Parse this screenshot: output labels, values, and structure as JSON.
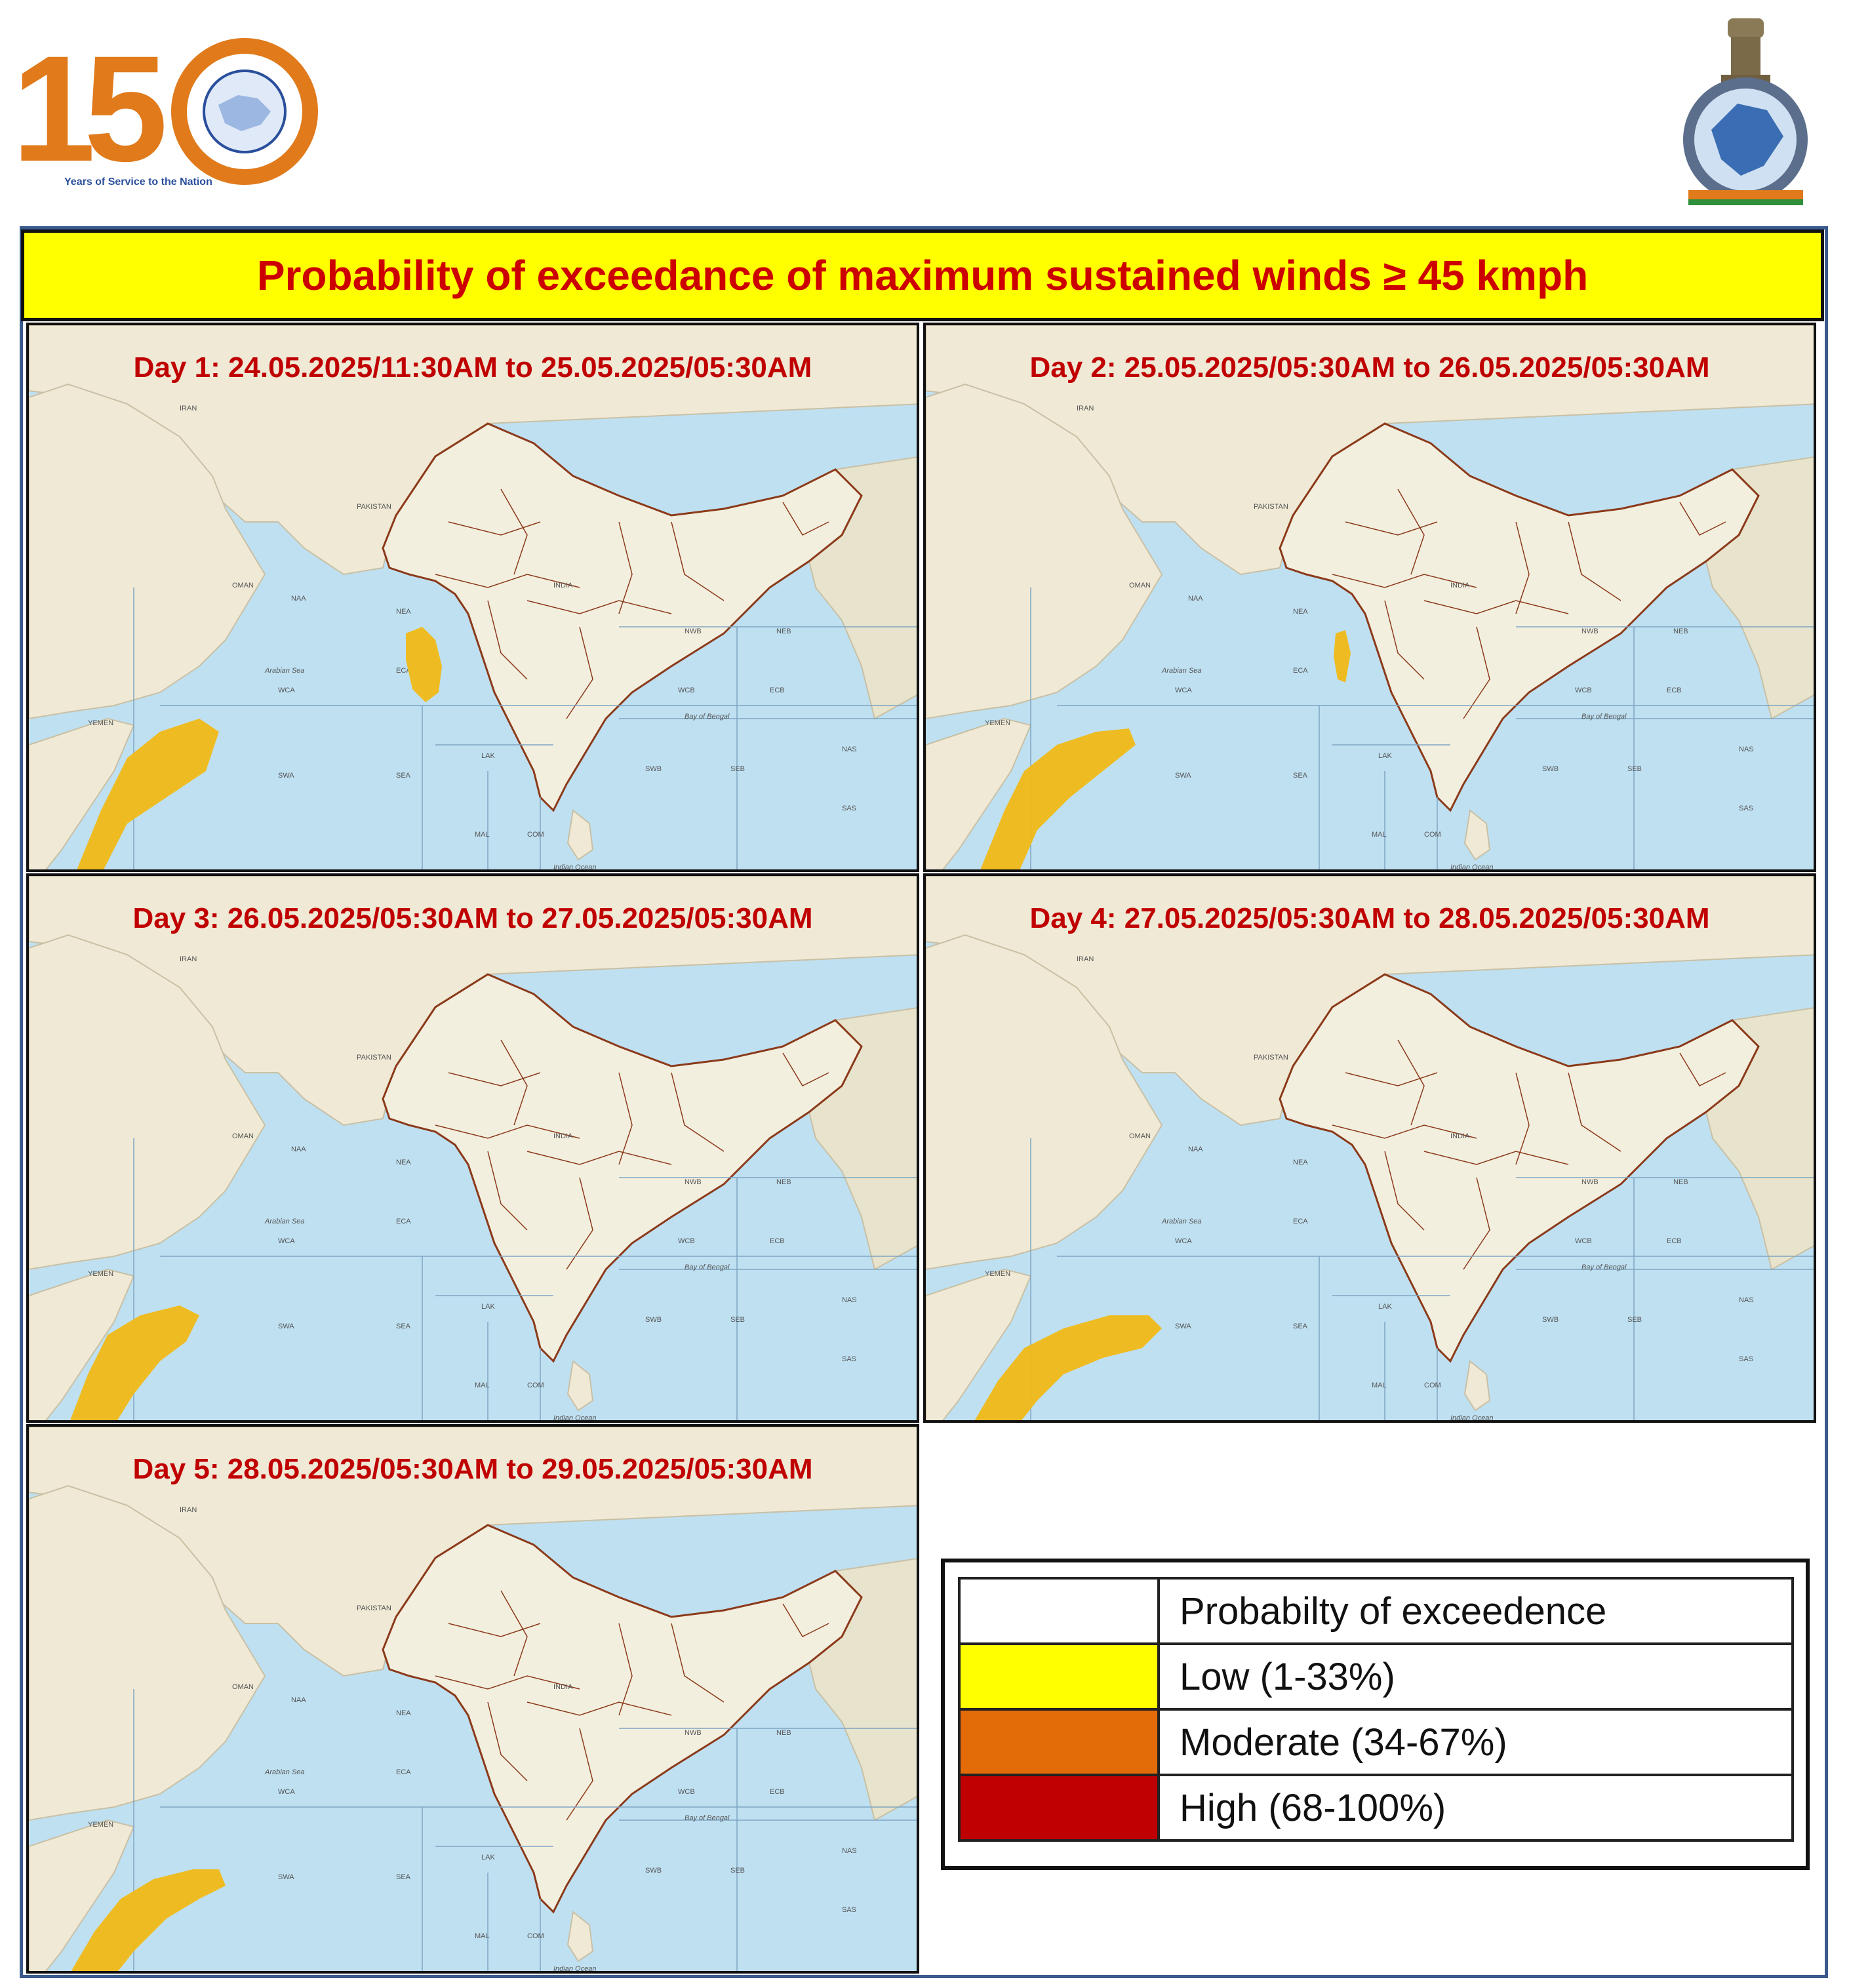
{
  "header": {
    "logo_left_text": "150",
    "logo_left_caption": "Years of Service to the Nation",
    "logo_right_icon": "imd-emblem-icon"
  },
  "title": "Probability  of exceedance of maximum sustained  winds ≥ 45 kmph",
  "map_labels": {
    "regions": [
      "NAA",
      "NEA",
      "ECA",
      "WCA",
      "SWA",
      "SEA",
      "LAK",
      "MAL",
      "COM",
      "NWB",
      "NEB",
      "WCB",
      "ECB",
      "SWB",
      "SEB",
      "NAS",
      "SAS"
    ],
    "countries": [
      "IRAN",
      "PAKISTAN",
      "INDIA",
      "YEMEN",
      "OMAN"
    ],
    "seas": [
      "Arabian Sea",
      "Bay of Bengal",
      "Indian Ocean"
    ]
  },
  "panels": [
    {
      "label": "Day 1: 24.05.2025/11:30AM  to 25.05.2025/05:30AM",
      "zones": [
        {
          "category": "moderate",
          "area": "western Arabian Sea off Somalia"
        },
        {
          "category": "moderate",
          "area": "Konkan coast"
        }
      ]
    },
    {
      "label": "Day 2:  25.05.2025/05:30AM  to 26.05.2025/05:30AM",
      "zones": [
        {
          "category": "moderate",
          "area": "western Arabian Sea off Somalia"
        },
        {
          "category": "moderate",
          "area": "Konkan-Goa coast"
        }
      ]
    },
    {
      "label": "Day 3:   26.05.2025/05:30AM  to 27.05.2025/05:30AM",
      "zones": [
        {
          "category": "moderate",
          "area": "western Arabian Sea off Somalia"
        }
      ]
    },
    {
      "label": "Day 4:  27.05.2025/05:30AM  to 28.05.2025/05:30AM",
      "zones": [
        {
          "category": "moderate",
          "area": "western Arabian Sea off Somalia"
        }
      ]
    },
    {
      "label": "Day 5:  28.05.2025/05:30AM  to 29.05.2025/05:30AM",
      "zones": [
        {
          "category": "moderate",
          "area": "western Arabian Sea off Somalia"
        }
      ]
    }
  ],
  "legend": {
    "header": "Probabilty of exceedence",
    "rows": [
      {
        "label": "Low (1-33%)",
        "color": "#ffff00"
      },
      {
        "label": "Moderate (34-67%)",
        "color": "#e36c09"
      },
      {
        "label": "High (68-100%)",
        "color": "#c00000"
      }
    ]
  },
  "colors": {
    "title_bg": "#ffff00",
    "title_text": "#cc0000",
    "zone_fill": "#f0b916",
    "ocean": "#bfe0f1",
    "land": "#efe9d6",
    "boundary": "#8b3a1a"
  }
}
